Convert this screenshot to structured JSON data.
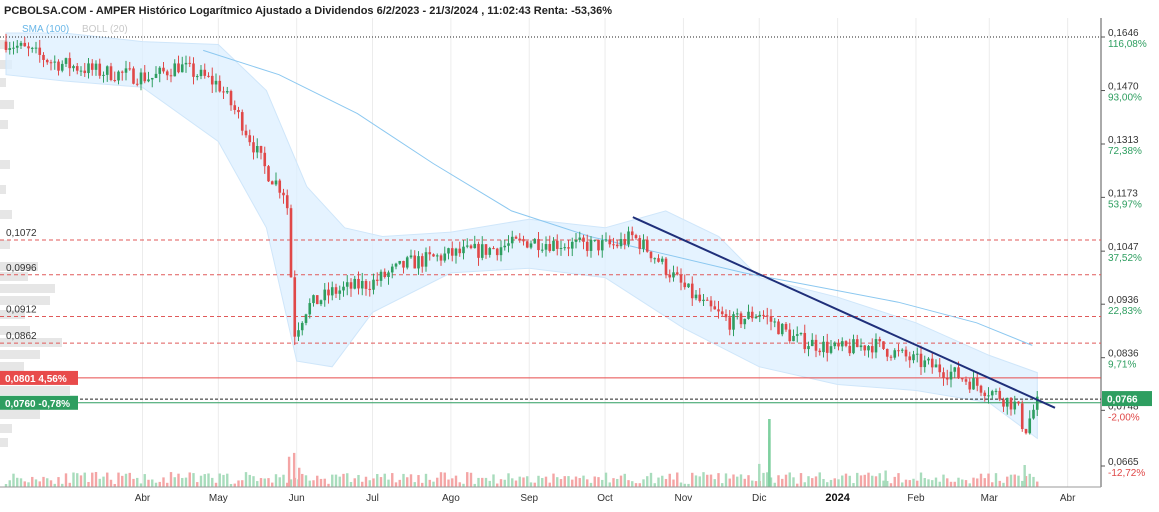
{
  "chart_data": {
    "type": "candlestick",
    "title": "PCBOLSA.COM - AMPER Histórico Logarítmico Ajustado a Dividendos 6/2/2023 - 21/3/2024 , 11:02:43 Renta: -53,36%",
    "legend": {
      "sma": "SMA (100)",
      "boll": "BOLL (20)"
    },
    "scale": "log",
    "ylim": [
      0.0645,
      0.167
    ],
    "right_axis": [
      {
        "price": "0,1646",
        "pct": "116,08%"
      },
      {
        "price": "0,1470",
        "pct": "93,00%"
      },
      {
        "price": "0,1313",
        "pct": "72,38%"
      },
      {
        "price": "0,1173",
        "pct": "53,97%"
      },
      {
        "price": "0,1047",
        "pct": "37,52%"
      },
      {
        "price": "0,0936",
        "pct": "22,83%"
      },
      {
        "price": "0,0836",
        "pct": "9,71%"
      },
      {
        "price": "0,0748",
        "pct": "-2,00%"
      },
      {
        "price": "0,0665",
        "pct": "-12,72%"
      }
    ],
    "current_price": "0,0766",
    "months": [
      "Abr",
      "May",
      "Jun",
      "Jul",
      "Ago",
      "Sep",
      "Oct",
      "Nov",
      "Dic",
      "2024",
      "Feb",
      "Mar",
      "Abr"
    ],
    "levels": [
      {
        "label": "0,1072",
        "value": 0.1072
      },
      {
        "label": "0,0996",
        "value": 0.0996
      },
      {
        "label": "0,0912",
        "value": 0.0912
      },
      {
        "label": "0,0862",
        "value": 0.0862
      }
    ],
    "tags": [
      {
        "label": "0,0801",
        "pct": "4,56%",
        "value": 0.0801,
        "color": "#e84b4b"
      },
      {
        "label": "0,0760",
        "pct": "-0,78%",
        "value": 0.076,
        "color": "#2e9e60"
      }
    ],
    "top_line": 0.1646,
    "dashed_line": 0.0766,
    "trendline": [
      {
        "date": "2023-10-12",
        "price": 0.1125
      },
      {
        "date": "2024-03-27",
        "price": 0.0752
      }
    ],
    "sma_path": [
      [
        "2023-04-25",
        0.16
      ],
      [
        "2023-05-25",
        0.152
      ],
      [
        "2023-06-25",
        0.14
      ],
      [
        "2023-07-25",
        0.126
      ],
      [
        "2023-08-25",
        0.114
      ],
      [
        "2023-09-25",
        0.108
      ],
      [
        "2023-10-25",
        0.104
      ],
      [
        "2023-11-25",
        0.1
      ],
      [
        "2023-12-25",
        0.097
      ],
      [
        "2024-01-25",
        0.094
      ],
      [
        "2024-02-25",
        0.09
      ],
      [
        "2024-03-18",
        0.0858
      ]
    ],
    "boll_upper": [
      [
        "2023-02-06",
        0.166
      ],
      [
        "2023-03-01",
        0.166
      ],
      [
        "2023-04-01",
        0.163
      ],
      [
        "2023-05-01",
        0.162
      ],
      [
        "2023-05-20",
        0.147
      ],
      [
        "2023-06-05",
        0.12
      ],
      [
        "2023-06-20",
        0.11
      ],
      [
        "2023-07-05",
        0.108
      ],
      [
        "2023-08-01",
        0.109
      ],
      [
        "2023-09-01",
        0.112
      ],
      [
        "2023-10-01",
        0.11
      ],
      [
        "2023-10-25",
        0.114
      ],
      [
        "2023-11-15",
        0.108
      ],
      [
        "2023-12-01",
        0.099
      ],
      [
        "2024-01-01",
        0.095
      ],
      [
        "2024-02-01",
        0.09
      ],
      [
        "2024-03-01",
        0.084
      ],
      [
        "2024-03-20",
        0.081
      ]
    ],
    "boll_lower": [
      [
        "2024-03-20",
        0.0705
      ],
      [
        "2024-03-01",
        0.076
      ],
      [
        "2024-02-01",
        0.078
      ],
      [
        "2024-01-01",
        0.079
      ],
      [
        "2023-12-01",
        0.082
      ],
      [
        "2023-11-01",
        0.089
      ],
      [
        "2023-10-01",
        0.099
      ],
      [
        "2023-09-01",
        0.101
      ],
      [
        "2023-08-01",
        0.1
      ],
      [
        "2023-07-01",
        0.092
      ],
      [
        "2023-06-15",
        0.082
      ],
      [
        "2023-06-01",
        0.083
      ],
      [
        "2023-05-20",
        0.11
      ],
      [
        "2023-05-01",
        0.132
      ],
      [
        "2023-04-01",
        0.148
      ],
      [
        "2023-03-01",
        0.15
      ],
      [
        "2023-02-06",
        0.152
      ]
    ],
    "close_path": [
      [
        "2023-02-06",
        0.163
      ],
      [
        "2023-02-25",
        0.156
      ],
      [
        "2023-03-15",
        0.153
      ],
      [
        "2023-04-05",
        0.151
      ],
      [
        "2023-04-15",
        0.155
      ],
      [
        "2023-05-01",
        0.149
      ],
      [
        "2023-05-10",
        0.138
      ],
      [
        "2023-05-20",
        0.124
      ],
      [
        "2023-05-28",
        0.118
      ],
      [
        "2023-05-31",
        0.088
      ],
      [
        "2023-06-05",
        0.093
      ],
      [
        "2023-06-15",
        0.096
      ],
      [
        "2023-07-01",
        0.098
      ],
      [
        "2023-07-15",
        0.102
      ],
      [
        "2023-08-01",
        0.104
      ],
      [
        "2023-08-15",
        0.105
      ],
      [
        "2023-09-01",
        0.107
      ],
      [
        "2023-09-20",
        0.106
      ],
      [
        "2023-10-05",
        0.106
      ],
      [
        "2023-10-12",
        0.108
      ],
      [
        "2023-10-20",
        0.104
      ],
      [
        "2023-11-01",
        0.097
      ],
      [
        "2023-11-10",
        0.093
      ],
      [
        "2023-11-20",
        0.09
      ],
      [
        "2023-12-01",
        0.092
      ],
      [
        "2023-12-15",
        0.087
      ],
      [
        "2024-01-01",
        0.085
      ],
      [
        "2024-01-15",
        0.086
      ],
      [
        "2024-02-01",
        0.083
      ],
      [
        "2024-02-15",
        0.081
      ],
      [
        "2024-03-01",
        0.078
      ],
      [
        "2024-03-12",
        0.0755
      ],
      [
        "2024-03-15",
        0.0715
      ],
      [
        "2024-03-18",
        0.0745
      ],
      [
        "2024-03-21",
        0.0766
      ]
    ],
    "volume_spikes": [
      {
        "date": "2023-05-29",
        "level": 0.55
      },
      {
        "date": "2023-05-31",
        "level": 0.62
      },
      {
        "date": "2023-06-02",
        "level": 0.35
      },
      {
        "date": "2023-12-05",
        "level": 0.9
      },
      {
        "date": "2023-12-01",
        "level": 0.42
      },
      {
        "date": "2024-01-20",
        "level": 0.3
      },
      {
        "date": "2024-03-15",
        "level": 0.4
      }
    ],
    "volume_big": {
      "date": "2023-12-05",
      "level": 1.0
    }
  }
}
